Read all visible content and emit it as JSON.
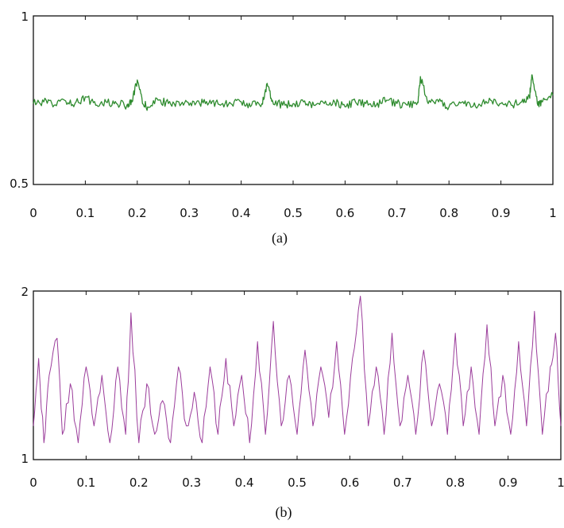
{
  "chart_data": [
    {
      "type": "line",
      "caption": "(a)",
      "xlim": [
        0,
        1
      ],
      "ylim": [
        0.5,
        1
      ],
      "x_ticks": [
        "0",
        "0.1",
        "0.2",
        "0.3",
        "0.4",
        "0.5",
        "0.6",
        "0.7",
        "0.8",
        "0.9",
        "1"
      ],
      "y_ticks": [
        "0.5",
        "1"
      ],
      "grid": false,
      "color": "#2e8b2e",
      "series": [
        {
          "x": [
            0,
            0.02,
            0.04,
            0.06,
            0.08,
            0.1,
            0.12,
            0.14,
            0.16,
            0.18,
            0.19,
            0.2,
            0.21,
            0.22,
            0.24,
            0.26,
            0.28,
            0.3,
            0.32,
            0.34,
            0.36,
            0.38,
            0.4,
            0.42,
            0.44,
            0.45,
            0.46,
            0.48,
            0.5,
            0.52,
            0.54,
            0.56,
            0.58,
            0.6,
            0.62,
            0.64,
            0.66,
            0.68,
            0.7,
            0.72,
            0.74,
            0.745,
            0.76,
            0.78,
            0.8,
            0.82,
            0.84,
            0.86,
            0.88,
            0.9,
            0.92,
            0.94,
            0.955,
            0.96,
            0.97,
            0.98,
            1.0
          ],
          "y": [
            0.74,
            0.745,
            0.735,
            0.75,
            0.74,
            0.76,
            0.735,
            0.745,
            0.74,
            0.735,
            0.745,
            0.81,
            0.74,
            0.73,
            0.75,
            0.74,
            0.745,
            0.735,
            0.74,
            0.75,
            0.735,
            0.74,
            0.745,
            0.735,
            0.74,
            0.8,
            0.75,
            0.735,
            0.74,
            0.745,
            0.735,
            0.74,
            0.745,
            0.73,
            0.745,
            0.74,
            0.735,
            0.75,
            0.74,
            0.735,
            0.745,
            0.82,
            0.74,
            0.745,
            0.73,
            0.745,
            0.74,
            0.735,
            0.75,
            0.74,
            0.735,
            0.745,
            0.76,
            0.825,
            0.74,
            0.745,
            0.765
          ]
        }
      ]
    },
    {
      "type": "line",
      "caption": "(b)",
      "xlim": [
        0,
        1
      ],
      "ylim": [
        1,
        2
      ],
      "x_ticks": [
        "0",
        "0.1",
        "0.2",
        "0.3",
        "0.4",
        "0.5",
        "0.6",
        "0.7",
        "0.8",
        "0.9",
        "1"
      ],
      "y_ticks": [
        "1",
        "2"
      ],
      "grid": false,
      "color": "#9b3d9b",
      "series": [
        {
          "x": [
            0,
            0.01,
            0.02,
            0.03,
            0.045,
            0.055,
            0.07,
            0.085,
            0.1,
            0.115,
            0.13,
            0.145,
            0.16,
            0.175,
            0.185,
            0.2,
            0.215,
            0.23,
            0.245,
            0.26,
            0.275,
            0.29,
            0.305,
            0.32,
            0.335,
            0.35,
            0.365,
            0.38,
            0.395,
            0.41,
            0.425,
            0.44,
            0.455,
            0.47,
            0.485,
            0.5,
            0.515,
            0.53,
            0.545,
            0.56,
            0.575,
            0.59,
            0.605,
            0.62,
            0.635,
            0.65,
            0.665,
            0.68,
            0.695,
            0.71,
            0.725,
            0.74,
            0.755,
            0.77,
            0.785,
            0.8,
            0.815,
            0.83,
            0.845,
            0.86,
            0.875,
            0.89,
            0.905,
            0.92,
            0.935,
            0.95,
            0.965,
            0.98,
            0.99,
            1.0
          ],
          "y": [
            1.2,
            1.6,
            1.1,
            1.5,
            1.72,
            1.15,
            1.45,
            1.1,
            1.55,
            1.2,
            1.5,
            1.1,
            1.55,
            1.15,
            1.87,
            1.1,
            1.45,
            1.15,
            1.35,
            1.1,
            1.55,
            1.2,
            1.4,
            1.1,
            1.55,
            1.15,
            1.6,
            1.2,
            1.5,
            1.1,
            1.7,
            1.15,
            1.82,
            1.2,
            1.5,
            1.15,
            1.65,
            1.2,
            1.55,
            1.25,
            1.7,
            1.15,
            1.6,
            1.97,
            1.2,
            1.55,
            1.15,
            1.75,
            1.2,
            1.5,
            1.15,
            1.65,
            1.2,
            1.45,
            1.15,
            1.75,
            1.2,
            1.55,
            1.15,
            1.8,
            1.2,
            1.5,
            1.15,
            1.7,
            1.2,
            1.88,
            1.15,
            1.55,
            1.75,
            1.2
          ]
        }
      ]
    }
  ]
}
